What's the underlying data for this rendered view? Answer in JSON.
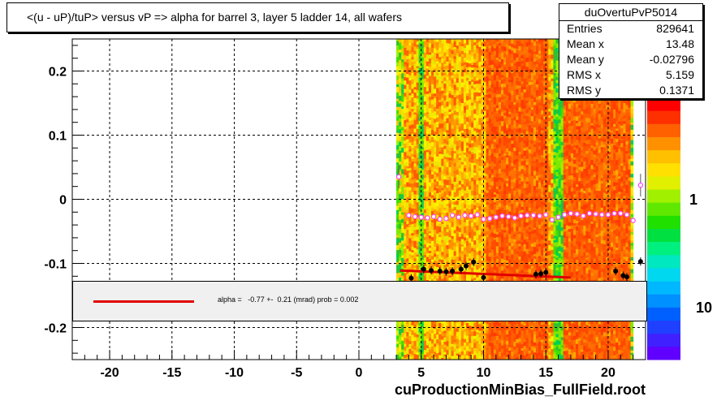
{
  "title": "<(u - uP)/tuP>  versus   vP => alpha for barrel 3, layer 5 ladder 14, all wafers",
  "stats": {
    "name": "duOvertuPvP5014",
    "rows": [
      {
        "label": "Entries",
        "value": "829641"
      },
      {
        "label": "Mean x",
        "value": "13.48"
      },
      {
        "label": "Mean y",
        "value": "-0.02796"
      },
      {
        "label": "RMS x",
        "value": "5.159"
      },
      {
        "label": "RMS y",
        "value": "0.1371"
      }
    ]
  },
  "fit_text": "alpha =   -0.77 +-  0.21 (mrad) prob = 0.002",
  "footer": "cuProductionMinBias_FullField.root",
  "colors": {
    "fit_line": "#e00000",
    "profile_marker": "#ff40ff",
    "points": "#000000"
  },
  "chart_data": {
    "type": "heatmap",
    "xlim": [
      -23,
      23
    ],
    "ylim": [
      -0.25,
      0.25
    ],
    "x_ticks": [
      -20,
      -15,
      -10,
      -5,
      0,
      5,
      10,
      15,
      20
    ],
    "x_tick_labels": [
      "-20",
      "-15",
      "-10",
      "-5",
      "0",
      "5",
      "10",
      "15",
      "20"
    ],
    "y_ticks": [
      0.2,
      0.1,
      0,
      -0.1,
      -0.2
    ],
    "y_tick_labels": [
      "0.2",
      "0.1",
      "0",
      "-0.1",
      "-0.2"
    ],
    "grid": true,
    "colorbar_labels": [
      "1",
      "10"
    ],
    "occupied_x_range": [
      3,
      22
    ],
    "cold_bands_x": [
      [
        4.8,
        5.1
      ],
      [
        15.5,
        16.2
      ]
    ],
    "hot_columns_x": [
      [
        10,
        15
      ],
      [
        16.3,
        22
      ]
    ],
    "profile": {
      "x": [
        3.2,
        4,
        4.5,
        5,
        5.5,
        6,
        6.5,
        7,
        7.5,
        8,
        8.5,
        9,
        9.5,
        10,
        10.5,
        11,
        11.5,
        12,
        12.5,
        13,
        13.5,
        14,
        14.5,
        15,
        15.5,
        16,
        16.5,
        17,
        17.5,
        18,
        18.5,
        19,
        19.5,
        20,
        20.5,
        21,
        21.5,
        22,
        22.6
      ],
      "y": [
        0.035,
        -0.025,
        -0.027,
        -0.028,
        -0.029,
        -0.027,
        -0.031,
        -0.03,
        -0.025,
        -0.028,
        -0.025,
        -0.026,
        -0.024,
        -0.031,
        -0.03,
        -0.028,
        -0.026,
        -0.027,
        -0.029,
        -0.026,
        -0.025,
        -0.025,
        -0.026,
        -0.024,
        -0.032,
        -0.028,
        -0.024,
        -0.022,
        -0.023,
        -0.026,
        -0.022,
        -0.023,
        -0.024,
        -0.024,
        -0.022,
        -0.022,
        -0.024,
        -0.033,
        0.022
      ]
    },
    "low_points": {
      "x": [
        4.2,
        5.2,
        5.8,
        6.5,
        7,
        7.5,
        8.2,
        8.6,
        9.2,
        10,
        14.2,
        14.6,
        15,
        20.6,
        21.2,
        21.5,
        22.6
      ],
      "y": [
        -0.123,
        -0.109,
        -0.111,
        -0.112,
        -0.113,
        -0.112,
        -0.109,
        -0.104,
        -0.098,
        -0.122,
        -0.117,
        -0.116,
        -0.114,
        -0.112,
        -0.119,
        -0.121,
        -0.097
      ]
    },
    "fit": {
      "alpha_mrad": -0.77,
      "alpha_err": 0.21,
      "prob": 0.002
    }
  }
}
